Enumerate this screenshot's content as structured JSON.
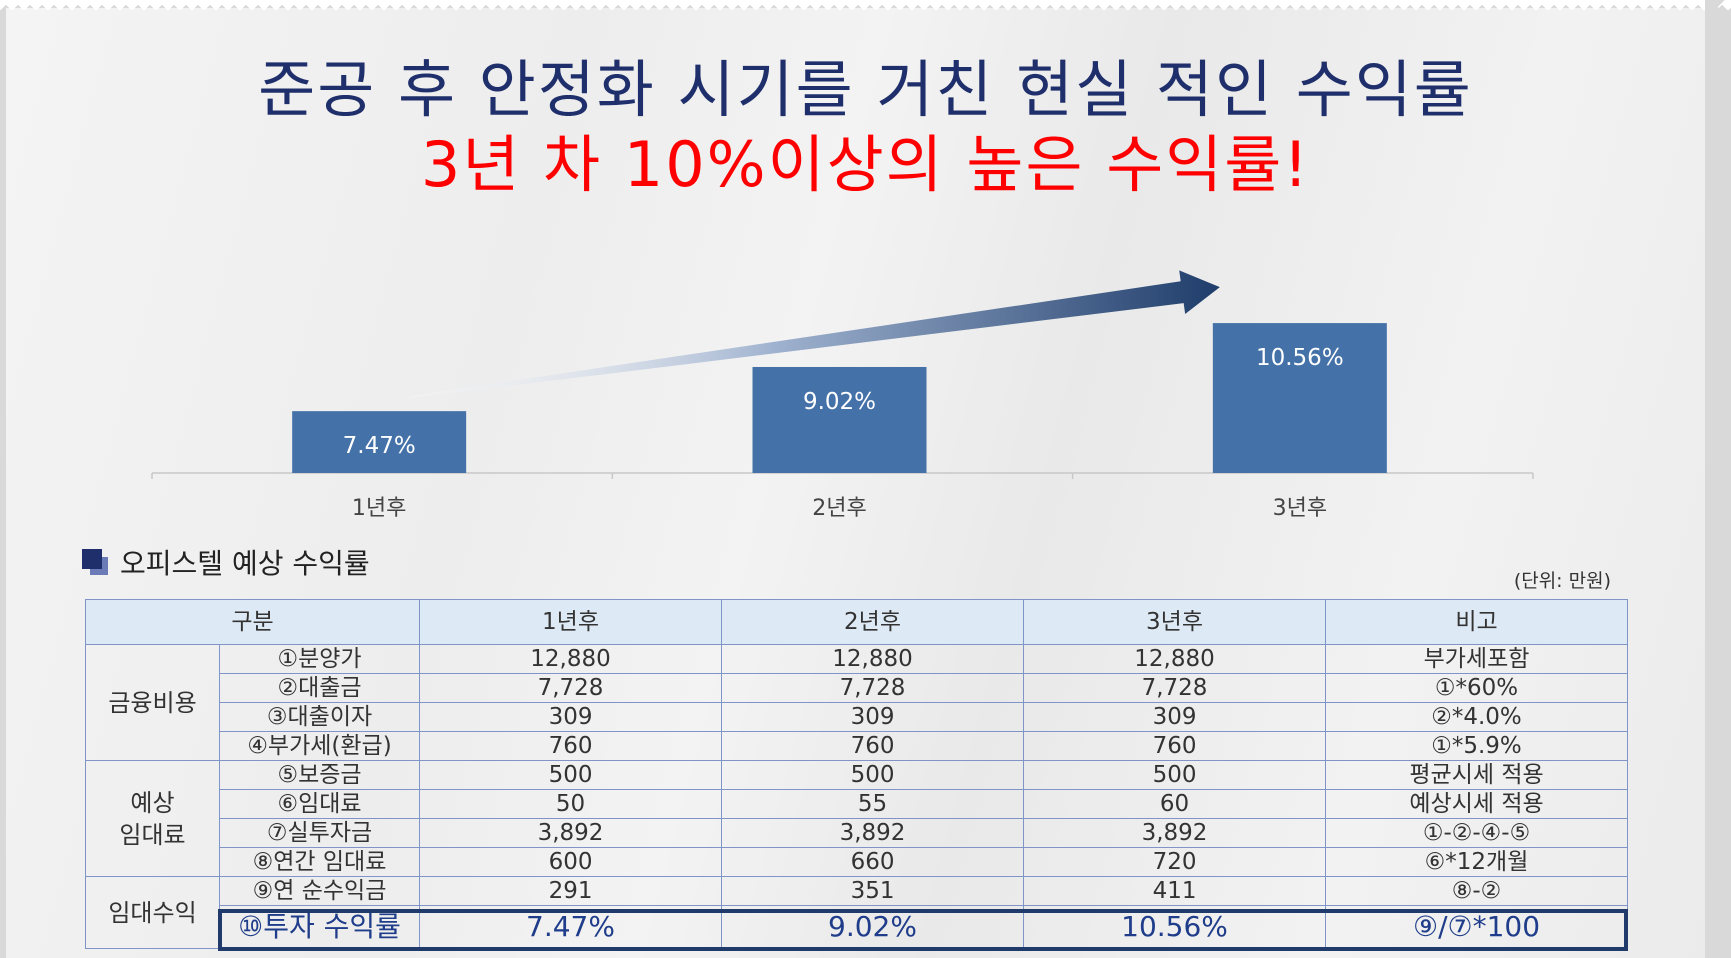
{
  "title_line1": "준공 후 안정화 시기를 거친 현실 적인 수익률",
  "title_line2": "3년 차 10%이상의 높은 수익률!",
  "chart_data": {
    "type": "bar",
    "categories": [
      "1년후",
      "2년후",
      "3년후"
    ],
    "values": [
      7.47,
      9.02,
      10.56
    ],
    "labels": [
      "7.47%",
      "9.02%",
      "10.56%"
    ],
    "bar_color": "#4472a8",
    "arrow_color": "#1f3d6b",
    "title": "",
    "xlabel": "",
    "ylabel": "",
    "grid": false
  },
  "section_title": "오피스텔 예상 수익률",
  "unit_label": "(단위: 만원)",
  "table": {
    "headers": [
      "구분",
      "1년후",
      "2년후",
      "3년후",
      "비고"
    ],
    "groups": [
      {
        "label": "금융비용",
        "rows": [
          {
            "item": "①분양가",
            "y1": "12,880",
            "y2": "12,880",
            "y3": "12,880",
            "note": "부가세포함"
          },
          {
            "item": "②대출금",
            "y1": "7,728",
            "y2": "7,728",
            "y3": "7,728",
            "note": "①*60%"
          },
          {
            "item": "③대출이자",
            "y1": "309",
            "y2": "309",
            "y3": "309",
            "note": "②*4.0%"
          },
          {
            "item": "④부가세(환급)",
            "y1": "760",
            "y2": "760",
            "y3": "760",
            "note": "①*5.9%"
          }
        ]
      },
      {
        "label": "예상\n임대료",
        "rows": [
          {
            "item": "⑤보증금",
            "y1": "500",
            "y2": "500",
            "y3": "500",
            "note": "평균시세 적용"
          },
          {
            "item": "⑥임대료",
            "y1": "50",
            "y2": "55",
            "y3": "60",
            "note": "예상시세 적용"
          },
          {
            "item": "⑦실투자금",
            "y1": "3,892",
            "y2": "3,892",
            "y3": "3,892",
            "note": "①-②-④-⑤"
          },
          {
            "item": "⑧연간 임대료",
            "y1": "600",
            "y2": "660",
            "y3": "720",
            "note": "⑥*12개월"
          }
        ]
      },
      {
        "label": "임대수익",
        "rows": [
          {
            "item": "⑨연 순수익금",
            "y1": "291",
            "y2": "351",
            "y3": "411",
            "note": "⑧-②"
          },
          {
            "item": "⑩투자 수익률",
            "y1": "7.47%",
            "y2": "9.02%",
            "y3": "10.56%",
            "note": "⑨/⑦*100"
          }
        ]
      }
    ]
  }
}
